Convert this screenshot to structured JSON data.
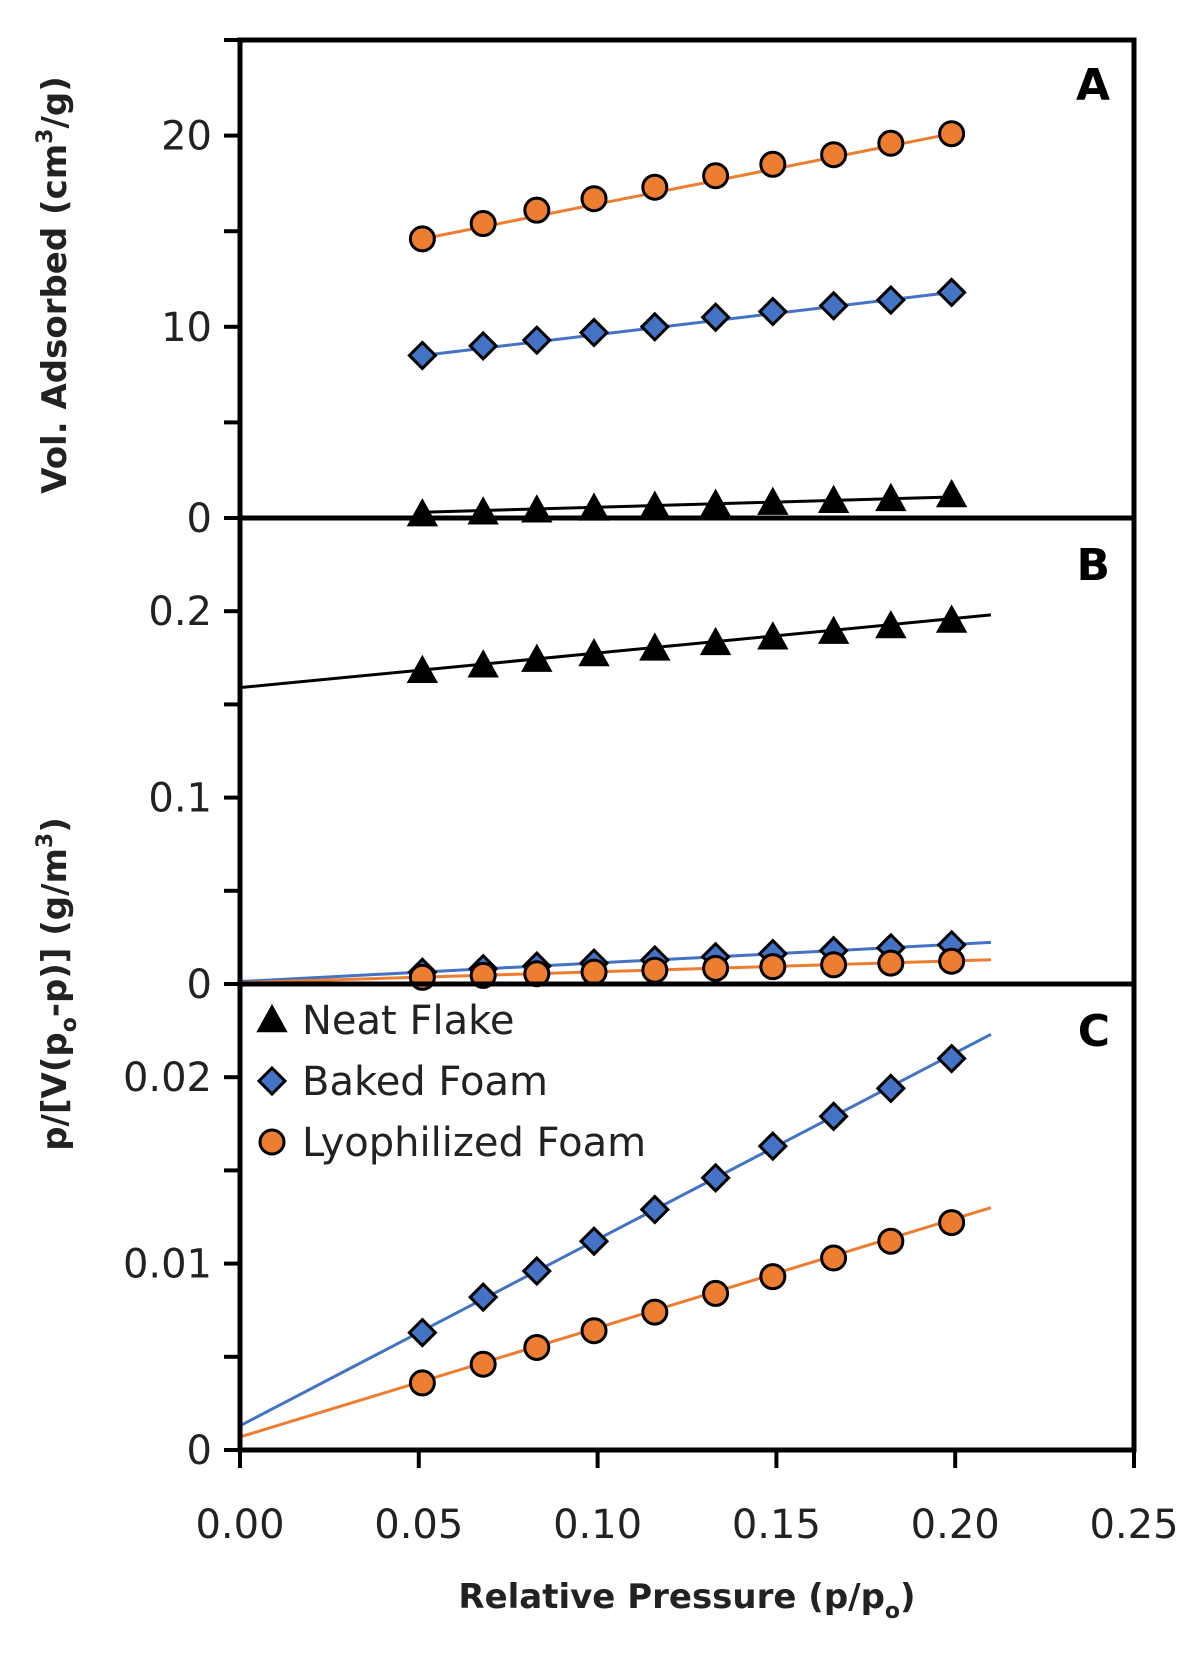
{
  "colors": {
    "neat": "#000000",
    "baked": "#4472C4",
    "lyo": "#ED7D31",
    "axis": "#000000"
  },
  "xaxis": {
    "title_main": "Relative Pressure (p/p",
    "title_sub": "o",
    "title_end": ")",
    "ticks": [
      "0.00",
      "0.05",
      "0.10",
      "0.15",
      "0.20",
      "0.25"
    ],
    "range": [
      0,
      0.25
    ]
  },
  "legend": [
    {
      "label": "Neat Flake",
      "series": "neat",
      "marker": "triangle"
    },
    {
      "label": "Baked Foam",
      "series": "baked",
      "marker": "diamond"
    },
    {
      "label": "Lyophilized Foam",
      "series": "lyo",
      "marker": "circle"
    }
  ],
  "chart_data": [
    {
      "type": "scatter",
      "panel": "A",
      "ylabel_main": "Vol. Adsorbed (cm",
      "ylabel_sup": "3",
      "ylabel_end": "/g)",
      "ylim": [
        0,
        25
      ],
      "yticks": [
        "0",
        "10",
        "20"
      ],
      "yticks_values": [
        0,
        10,
        20
      ],
      "x": [
        0.051,
        0.068,
        0.083,
        0.099,
        0.116,
        0.133,
        0.149,
        0.166,
        0.182,
        0.199
      ],
      "series": [
        {
          "name": "Lyophilized Foam",
          "key": "lyo",
          "marker": "circle",
          "values": [
            14.6,
            15.4,
            16.1,
            16.7,
            17.3,
            17.9,
            18.5,
            19.0,
            19.6,
            20.1
          ],
          "fit": {
            "x": [
              0.051,
              0.199
            ],
            "y": [
              14.6,
              20.1
            ]
          }
        },
        {
          "name": "Baked Foam",
          "key": "baked",
          "marker": "diamond",
          "values": [
            8.5,
            9.0,
            9.3,
            9.7,
            10.0,
            10.5,
            10.8,
            11.1,
            11.4,
            11.8
          ],
          "fit": {
            "x": [
              0.051,
              0.199
            ],
            "y": [
              8.5,
              11.8
            ]
          }
        },
        {
          "name": "Neat Flake",
          "key": "neat",
          "marker": "triangle",
          "values": [
            0.2,
            0.3,
            0.4,
            0.5,
            0.6,
            0.7,
            0.8,
            0.9,
            1.0,
            1.2
          ],
          "fit": {
            "x": [
              0.051,
              0.199
            ],
            "y": [
              0.3,
              1.1
            ]
          }
        }
      ]
    },
    {
      "type": "scatter",
      "panel": "B",
      "ylabel_main": "p/[V(p",
      "ylabel_sub": "o",
      "ylabel_mid": "-p)] (g/m",
      "ylabel_sup": "3",
      "ylabel_end": ")",
      "ylim": [
        0,
        0.25
      ],
      "yticks": [
        "0",
        "0.1",
        "0.2"
      ],
      "yticks_values": [
        0,
        0.1,
        0.2
      ],
      "x": [
        0.051,
        0.068,
        0.083,
        0.099,
        0.116,
        0.133,
        0.149,
        0.166,
        0.182,
        0.199
      ],
      "series": [
        {
          "name": "Neat Flake",
          "key": "neat",
          "marker": "triangle",
          "values": [
            0.168,
            0.171,
            0.174,
            0.177,
            0.18,
            0.183,
            0.186,
            0.189,
            0.192,
            0.195
          ],
          "fit": {
            "x": [
              0.0,
              0.21
            ],
            "y": [
              0.159,
              0.198
            ]
          }
        },
        {
          "name": "Baked Foam",
          "key": "baked",
          "marker": "diamond",
          "values": [
            0.0063,
            0.0082,
            0.0096,
            0.0112,
            0.0129,
            0.0146,
            0.0163,
            0.0179,
            0.0194,
            0.021
          ],
          "fit": {
            "x": [
              0.0,
              0.21
            ],
            "y": [
              0.0013,
              0.0223
            ]
          }
        },
        {
          "name": "Lyophilized Foam",
          "key": "lyo",
          "marker": "circle",
          "values": [
            0.0036,
            0.0046,
            0.0055,
            0.0064,
            0.0074,
            0.0084,
            0.0093,
            0.0103,
            0.0112,
            0.0122
          ],
          "fit": {
            "x": [
              0.0,
              0.21
            ],
            "y": [
              0.0007,
              0.013
            ]
          }
        }
      ]
    },
    {
      "type": "scatter",
      "panel": "C",
      "ylim": [
        0,
        0.025
      ],
      "yticks": [
        "0",
        "0.01",
        "0.02"
      ],
      "yticks_values": [
        0,
        0.01,
        0.02
      ],
      "x": [
        0.051,
        0.068,
        0.083,
        0.099,
        0.116,
        0.133,
        0.149,
        0.166,
        0.182,
        0.199
      ],
      "series": [
        {
          "name": "Baked Foam",
          "key": "baked",
          "marker": "diamond",
          "values": [
            0.0063,
            0.0082,
            0.0096,
            0.0112,
            0.0129,
            0.0146,
            0.0163,
            0.0179,
            0.0194,
            0.021
          ],
          "fit": {
            "x": [
              0.0,
              0.21
            ],
            "y": [
              0.0013,
              0.0223
            ]
          }
        },
        {
          "name": "Lyophilized Foam",
          "key": "lyo",
          "marker": "circle",
          "values": [
            0.0036,
            0.0046,
            0.0055,
            0.0064,
            0.0074,
            0.0084,
            0.0093,
            0.0103,
            0.0112,
            0.0122
          ],
          "fit": {
            "x": [
              0.0,
              0.21
            ],
            "y": [
              0.0007,
              0.013
            ]
          }
        }
      ]
    }
  ]
}
